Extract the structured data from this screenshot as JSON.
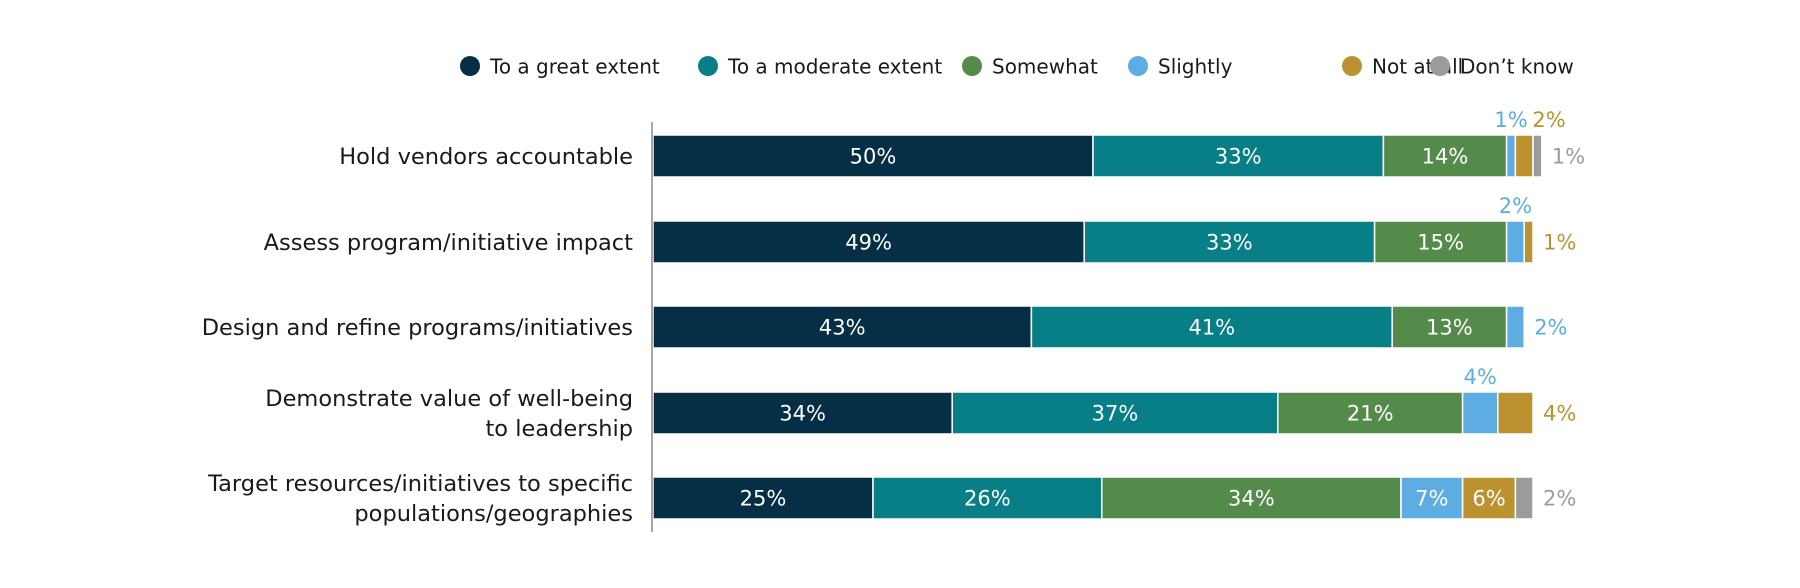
{
  "chart_data": {
    "type": "bar",
    "orientation": "horizontal",
    "stacked": true,
    "title": "",
    "xlabel": "",
    "ylabel": "",
    "xlim": [
      0,
      100
    ],
    "grid": false,
    "legend_position": "top",
    "categories": [
      [
        "Hold vendors accountable"
      ],
      [
        "Assess program/initiative impact"
      ],
      [
        "Design and refine programs/initiatives"
      ],
      [
        "Demonstrate value of well-being",
        "to leadership"
      ],
      [
        "Target resources/initiatives to specific",
        "populations/geographies"
      ]
    ],
    "series": [
      {
        "name": "To a great extent",
        "color": "#062e45",
        "values": [
          50,
          49,
          43,
          34,
          25
        ]
      },
      {
        "name": "To a moderate extent",
        "color": "#087f86",
        "values": [
          33,
          33,
          41,
          37,
          26
        ]
      },
      {
        "name": "Somewhat",
        "color": "#558b4a",
        "values": [
          14,
          15,
          13,
          21,
          34
        ]
      },
      {
        "name": "Slightly",
        "color": "#5dade2",
        "values": [
          1,
          2,
          2,
          4,
          7
        ]
      },
      {
        "name": "Not at all",
        "color": "#bc9230",
        "values": [
          2,
          1,
          0,
          4,
          6
        ]
      },
      {
        "name": "Don’t know",
        "color": "#9b9b9b",
        "values": [
          1,
          0,
          0,
          0,
          2
        ]
      }
    ],
    "data_labels": [
      [
        "50%",
        "33%",
        "14%",
        "1%",
        "2%",
        "1%"
      ],
      [
        "49%",
        "33%",
        "15%",
        "2%",
        "1%",
        ""
      ],
      [
        "43%",
        "41%",
        "13%",
        "2%",
        "",
        ""
      ],
      [
        "34%",
        "37%",
        "21%",
        "4%",
        "4%",
        ""
      ],
      [
        "25%",
        "26%",
        "34%",
        "7%",
        "6%",
        "2%"
      ]
    ]
  }
}
